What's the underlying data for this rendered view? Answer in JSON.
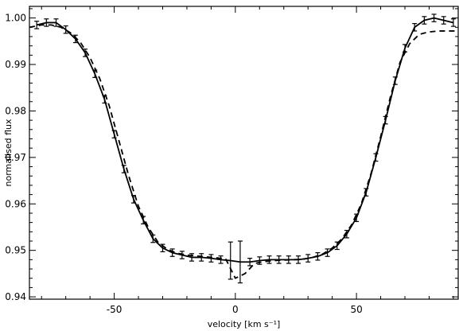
{
  "chart_data": {
    "type": "line",
    "title": "",
    "xlabel": "velocity [km s⁻¹]",
    "ylabel": "normalised flux",
    "xlim": [
      -85,
      92
    ],
    "ylim": [
      0.9395,
      1.0025
    ],
    "xticks": [
      -50,
      0,
      50
    ],
    "xtick_labels": [
      "-50",
      "0",
      "50"
    ],
    "yticks": [
      0.94,
      0.95,
      0.96,
      0.97,
      0.98,
      0.99,
      1.0
    ],
    "ytick_labels": [
      "0.94",
      "0.95",
      "0.96",
      "0.97",
      "0.98",
      "0.99",
      "1.00"
    ],
    "grid": false,
    "legend": "none",
    "series": [
      {
        "line_style": "solid",
        "color": "#000000",
        "x": [
          -82,
          -78,
          -74,
          -70,
          -66,
          -62,
          -58,
          -54,
          -50,
          -46,
          -42,
          -38,
          -34,
          -30,
          -26,
          -22,
          -18,
          -14,
          -10,
          -6,
          -2,
          2,
          6,
          10,
          14,
          18,
          22,
          26,
          30,
          34,
          38,
          42,
          46,
          50,
          54,
          58,
          62,
          66,
          70,
          74,
          78,
          82,
          86,
          90
        ],
        "y": [
          0.9985,
          0.999,
          0.999,
          0.9975,
          0.9955,
          0.9925,
          0.988,
          0.9825,
          0.975,
          0.9675,
          0.961,
          0.9565,
          0.9525,
          0.9505,
          0.9495,
          0.949,
          0.9485,
          0.9485,
          0.9483,
          0.948,
          0.9478,
          0.9475,
          0.9475,
          0.9478,
          0.948,
          0.948,
          0.948,
          0.948,
          0.9483,
          0.9487,
          0.9495,
          0.951,
          0.9535,
          0.957,
          0.9625,
          0.97,
          0.978,
          0.9865,
          0.9935,
          0.998,
          0.9995,
          1.0,
          0.9995,
          0.999
        ],
        "yerr": [
          0.0008,
          0.0008,
          0.0008,
          0.0008,
          0.0008,
          0.0008,
          0.0008,
          0.0008,
          0.0008,
          0.0008,
          0.0008,
          0.0008,
          0.0008,
          0.0008,
          0.0008,
          0.0008,
          0.0008,
          0.0008,
          0.0008,
          0.0008,
          0.004,
          0.0045,
          0.0008,
          0.0008,
          0.0008,
          0.0008,
          0.0008,
          0.0008,
          0.0008,
          0.0008,
          0.0008,
          0.0008,
          0.0008,
          0.0008,
          0.0008,
          0.0008,
          0.0008,
          0.0008,
          0.0008,
          0.0008,
          0.0008,
          0.0008,
          0.0008,
          0.0008
        ]
      },
      {
        "line_style": "dashed",
        "color": "#000000",
        "x": [
          -85,
          -80,
          -76,
          -72,
          -68,
          -64,
          -60,
          -56,
          -52,
          -48,
          -44,
          -40,
          -36,
          -32,
          -28,
          -24,
          -20,
          -16,
          -12,
          -8,
          -4,
          0,
          4,
          8,
          12,
          16,
          20,
          24,
          28,
          32,
          36,
          40,
          44,
          48,
          52,
          56,
          60,
          64,
          68,
          72,
          76,
          80,
          84,
          88,
          92
        ],
        "y": [
          0.998,
          0.9985,
          0.9985,
          0.998,
          0.9968,
          0.9948,
          0.9915,
          0.987,
          0.981,
          0.9735,
          0.966,
          0.9595,
          0.955,
          0.9518,
          0.9502,
          0.9494,
          0.949,
          0.9488,
          0.9486,
          0.9484,
          0.9482,
          0.944,
          0.945,
          0.9472,
          0.9476,
          0.9478,
          0.9479,
          0.948,
          0.9481,
          0.9485,
          0.9492,
          0.9505,
          0.9525,
          0.9555,
          0.96,
          0.9665,
          0.9745,
          0.983,
          0.9905,
          0.9945,
          0.9965,
          0.997,
          0.9972,
          0.9972,
          0.9972
        ]
      }
    ]
  }
}
